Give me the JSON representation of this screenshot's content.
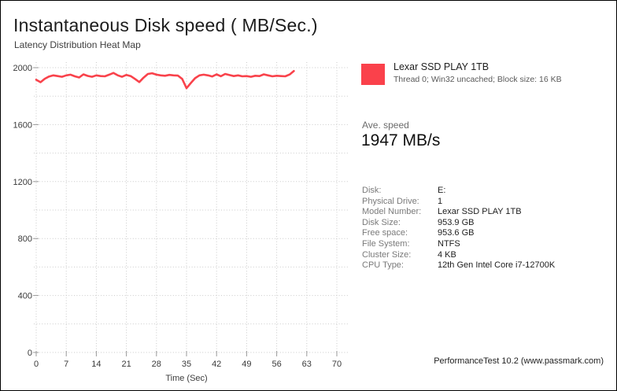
{
  "header": {
    "title": "Instantaneous Disk speed ( MB/Sec.)",
    "subtitle": "Latency Distribution Heat Map"
  },
  "legend": {
    "swatch_color": "#fa414b",
    "title": "Lexar SSD PLAY 1TB",
    "subtitle": "Thread 0; Win32 uncached; Block size: 16 KB"
  },
  "average": {
    "label": "Ave. speed",
    "value": "1947 MB/s"
  },
  "info": {
    "rows": [
      {
        "label": "Disk:",
        "value": "E:"
      },
      {
        "label": "Physical Drive:",
        "value": "1"
      },
      {
        "label": "Model Number:",
        "value": "Lexar SSD PLAY 1TB"
      },
      {
        "label": "Disk Size:",
        "value": "953.9 GB"
      },
      {
        "label": "Free space:",
        "value": "953.6 GB"
      },
      {
        "label": "File System:",
        "value": "NTFS"
      },
      {
        "label": "Cluster Size:",
        "value": "4 KB"
      },
      {
        "label": "CPU Type:",
        "value": "12th Gen Intel Core i7-12700K"
      }
    ]
  },
  "footer": {
    "text": "PerformanceTest 10.2 (www.passmark.com)"
  },
  "chart_data": {
    "type": "line",
    "title": "Instantaneous Disk speed ( MB/Sec.)",
    "xlabel": "Time (Sec)",
    "ylabel": "",
    "xlim": [
      0,
      70
    ],
    "ylim": [
      0,
      2000
    ],
    "xticks": [
      0,
      7,
      14,
      21,
      28,
      35,
      42,
      49,
      56,
      63,
      70
    ],
    "yticks_labeled": [
      0,
      400,
      800,
      1200,
      1600,
      2000
    ],
    "ygrid_step": 200,
    "grid": true,
    "legend_position": "top-right",
    "line_color": "#f9424b",
    "grid_color": "#c9c9c9",
    "average_mbps": 1947,
    "series": [
      {
        "name": "Lexar SSD PLAY 1TB",
        "x": [
          0,
          1,
          2,
          3,
          4,
          5,
          6,
          7,
          8,
          9,
          10,
          11,
          12,
          13,
          14,
          15,
          16,
          17,
          18,
          19,
          20,
          21,
          22,
          23,
          24,
          25,
          26,
          27,
          28,
          29,
          30,
          31,
          32,
          33,
          34,
          35,
          36,
          37,
          38,
          39,
          40,
          41,
          42,
          43,
          44,
          45,
          46,
          47,
          48,
          49,
          50,
          51,
          52,
          53,
          54,
          55,
          56,
          57,
          58,
          59,
          60
        ],
        "values": [
          1915,
          1898,
          1922,
          1938,
          1946,
          1941,
          1936,
          1946,
          1951,
          1939,
          1931,
          1953,
          1942,
          1936,
          1946,
          1941,
          1939,
          1951,
          1963,
          1946,
          1936,
          1949,
          1941,
          1921,
          1899,
          1930,
          1956,
          1961,
          1951,
          1946,
          1943,
          1949,
          1946,
          1944,
          1921,
          1856,
          1892,
          1926,
          1946,
          1951,
          1946,
          1938,
          1953,
          1940,
          1956,
          1948,
          1941,
          1946,
          1939,
          1941,
          1936,
          1943,
          1941,
          1953,
          1946,
          1939,
          1943,
          1941,
          1939,
          1952,
          1976
        ]
      }
    ]
  }
}
